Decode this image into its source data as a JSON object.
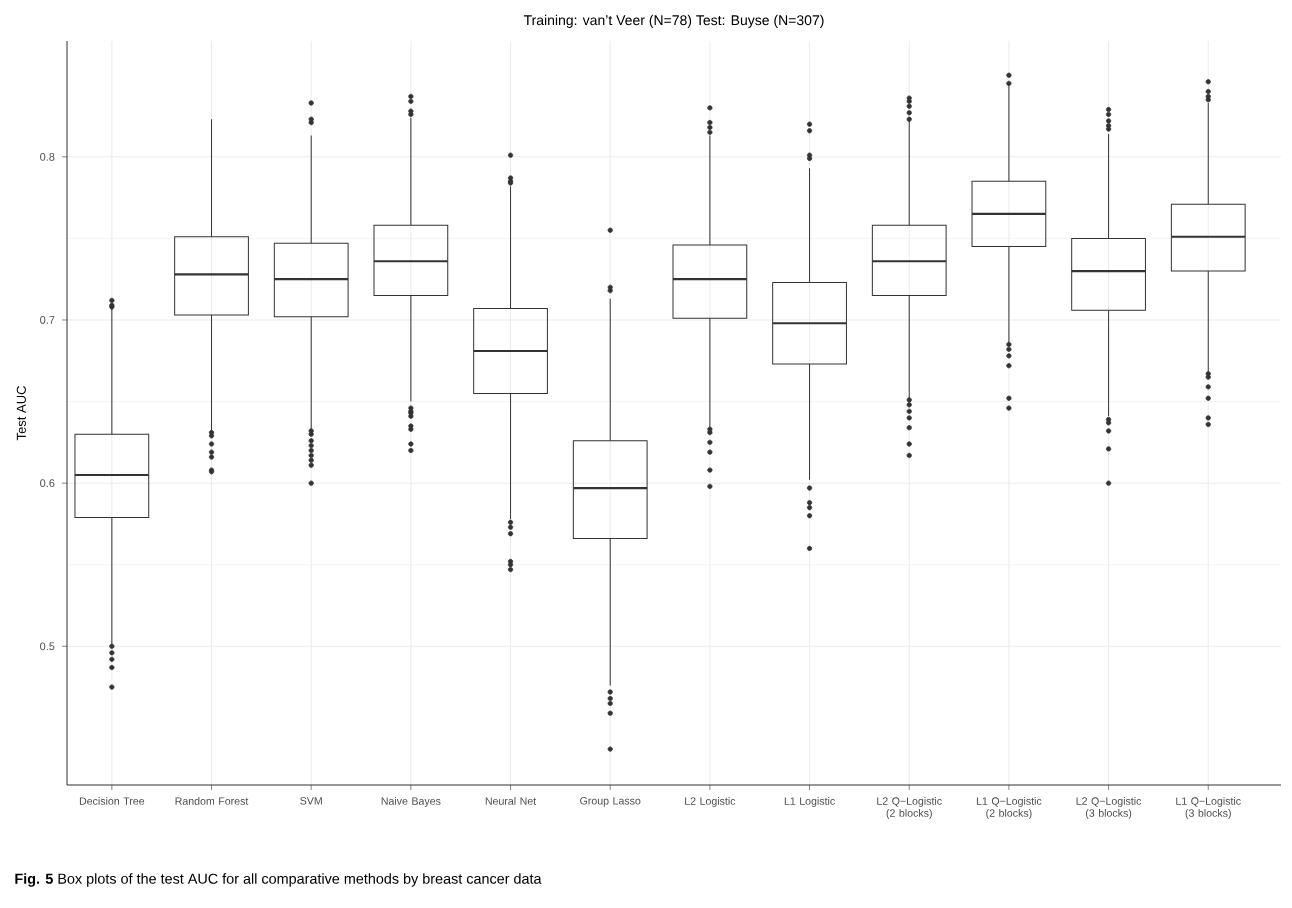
{
  "chart_data": {
    "type": "box",
    "title": "Training: van’t Veer (N=78)  Test: Buyse (N=307)",
    "ylabel": "Test AUC",
    "categories": [
      "Decision Tree",
      "Random Forest",
      "SVM",
      "Naive Bayes",
      "Neural Net",
      "Group Lasso",
      "L2 Logistic",
      "L1 Logistic",
      "L2 Q−Logistic (2 blocks)",
      "L1 Q−Logistic (2 blocks)",
      "L2 Q−Logistic (3 blocks)",
      "L1 Q−Logistic (3 blocks)"
    ],
    "series": [
      {
        "color": "#333333",
        "boxes": [
          {
            "low": 0.501,
            "q1": 0.579,
            "median": 0.605,
            "q3": 0.63,
            "high": 0.707,
            "outliers": [
              0.5,
              0.496,
              0.492,
              0.487,
              0.475,
              0.708,
              0.709,
              0.712
            ]
          },
          {
            "low": 0.632,
            "q1": 0.703,
            "median": 0.728,
            "q3": 0.751,
            "high": 0.823,
            "outliers": [
              0.631,
              0.629,
              0.624,
              0.619,
              0.616,
              0.608,
              0.607
            ]
          },
          {
            "low": 0.633,
            "q1": 0.702,
            "median": 0.725,
            "q3": 0.747,
            "high": 0.813,
            "outliers": [
              0.632,
              0.63,
              0.626,
              0.623,
              0.62,
              0.617,
              0.614,
              0.611,
              0.6,
              0.821,
              0.823,
              0.833
            ]
          },
          {
            "low": 0.65,
            "q1": 0.715,
            "median": 0.736,
            "q3": 0.758,
            "high": 0.824,
            "outliers": [
              0.646,
              0.644,
              0.643,
              0.641,
              0.635,
              0.633,
              0.624,
              0.62,
              0.826,
              0.828,
              0.834,
              0.837
            ]
          },
          {
            "low": 0.578,
            "q1": 0.655,
            "median": 0.681,
            "q3": 0.707,
            "high": 0.782,
            "outliers": [
              0.576,
              0.573,
              0.569,
              0.552,
              0.55,
              0.547,
              0.784,
              0.785,
              0.787,
              0.801
            ]
          },
          {
            "low": 0.476,
            "q1": 0.566,
            "median": 0.597,
            "q3": 0.626,
            "high": 0.713,
            "outliers": [
              0.472,
              0.468,
              0.465,
              0.459,
              0.437,
              0.718,
              0.72,
              0.755
            ]
          },
          {
            "low": 0.634,
            "q1": 0.701,
            "median": 0.725,
            "q3": 0.746,
            "high": 0.813,
            "outliers": [
              0.633,
              0.631,
              0.625,
              0.619,
              0.608,
              0.598,
              0.815,
              0.818,
              0.821,
              0.83
            ]
          },
          {
            "low": 0.602,
            "q1": 0.673,
            "median": 0.698,
            "q3": 0.723,
            "high": 0.793,
            "outliers": [
              0.597,
              0.588,
              0.585,
              0.58,
              0.56,
              0.799,
              0.801,
              0.816,
              0.82
            ]
          },
          {
            "low": 0.652,
            "q1": 0.715,
            "median": 0.736,
            "q3": 0.758,
            "high": 0.822,
            "outliers": [
              0.651,
              0.648,
              0.644,
              0.64,
              0.634,
              0.624,
              0.617,
              0.823,
              0.827,
              0.831,
              0.834,
              0.836
            ]
          },
          {
            "low": 0.686,
            "q1": 0.745,
            "median": 0.765,
            "q3": 0.785,
            "high": 0.844,
            "outliers": [
              0.685,
              0.682,
              0.678,
              0.672,
              0.652,
              0.646,
              0.845,
              0.85
            ]
          },
          {
            "low": 0.641,
            "q1": 0.706,
            "median": 0.73,
            "q3": 0.75,
            "high": 0.814,
            "outliers": [
              0.639,
              0.637,
              0.632,
              0.621,
              0.6,
              0.817,
              0.819,
              0.822,
              0.826,
              0.829
            ]
          },
          {
            "low": 0.668,
            "q1": 0.73,
            "median": 0.751,
            "q3": 0.771,
            "high": 0.833,
            "outliers": [
              0.667,
              0.665,
              0.659,
              0.652,
              0.64,
              0.636,
              0.835,
              0.837,
              0.84,
              0.846
            ]
          }
        ]
      }
    ],
    "ylim": [
      0.415,
      0.871
    ],
    "yticks": [
      0.5,
      0.6,
      0.7,
      0.8
    ],
    "grid": true,
    "annotations": [
      "**Fig. 5** Box plots of the test AUC for all comparative methods by breast cancer data"
    ]
  }
}
